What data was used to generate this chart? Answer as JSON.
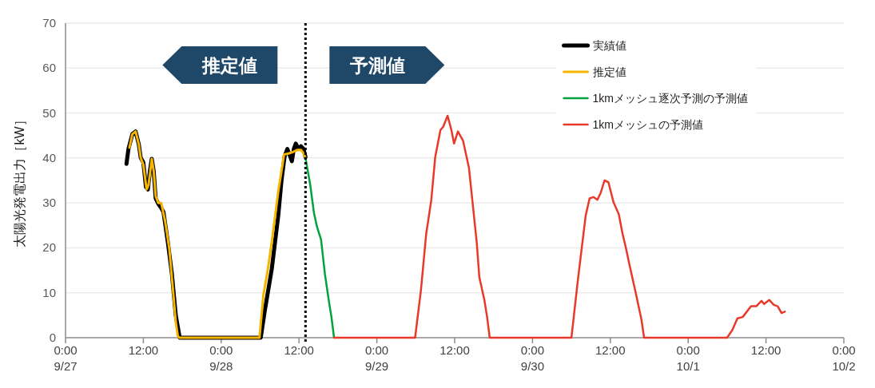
{
  "chart_data": {
    "type": "line",
    "ylabel": "太陽光発電出力［kW］",
    "annotations": [
      "推定値",
      "予測値"
    ],
    "xlim": [
      "--09-27T00:00",
      "--10-02T00:00"
    ],
    "xticks": [
      {
        "value": "--09-27T00:00",
        "label": "0:00\n9/27"
      },
      {
        "value": "--09-27T12:00",
        "label": "12:00"
      },
      {
        "value": "--09-28T00:00",
        "label": "0:00\n9/28"
      },
      {
        "value": "--09-28T12:00",
        "label": "12:00"
      },
      {
        "value": "--09-29T00:00",
        "label": "0:00\n9/29"
      },
      {
        "value": "--09-29T12:00",
        "label": "12:00"
      },
      {
        "value": "--09-30T00:00",
        "label": "0:00\n9/30"
      },
      {
        "value": "--09-30T12:00",
        "label": "12:00"
      },
      {
        "value": "--10-01T00:00",
        "label": "0:00\n10/1"
      },
      {
        "value": "--10-01T12:00",
        "label": "12:00"
      },
      {
        "value": "--10-02T00:00",
        "label": "0:00\n10/2"
      }
    ],
    "ylim": [
      0,
      70
    ],
    "yticks": [
      0,
      10,
      20,
      30,
      40,
      50,
      60,
      70
    ],
    "grid": "y",
    "legend": "top right",
    "ref_lines": [
      {
        "axis": "x",
        "value": "--09-28T13:00",
        "color": "#000000",
        "line_style": "dotted"
      }
    ],
    "series": [
      {
        "name": "実績値",
        "color": "#000000",
        "x": [
          "--09-27T09:24",
          "--09-27T09:42",
          "--09-27T10:18",
          "--09-27T10:48",
          "--09-27T11:18",
          "--09-27T11:36",
          "--09-27T12:00",
          "--09-27T12:24",
          "--09-27T12:42",
          "--09-27T13:00",
          "--09-27T13:18",
          "--09-27T13:36",
          "--09-27T13:54",
          "--09-27T14:18",
          "--09-27T14:42",
          "--09-27T15:06",
          "--09-27T15:48",
          "--09-27T16:24",
          "--09-27T17:00",
          "--09-27T17:36",
          "--09-28T06:06",
          "--09-28T06:42",
          "--09-28T07:48",
          "--09-28T08:48",
          "--09-28T09:18",
          "--09-28T09:48",
          "--09-28T10:12",
          "--09-28T10:36",
          "--09-28T10:54",
          "--09-28T11:12",
          "--09-28T11:30",
          "--09-28T11:54",
          "--09-28T12:18",
          "--09-28T12:42",
          "--09-28T13:00"
        ],
        "values": [
          38.7,
          42,
          45.3,
          45.9,
          43,
          40,
          39,
          33.5,
          33,
          37,
          39.8,
          37,
          31,
          29.8,
          29,
          28,
          21,
          14.2,
          5,
          0,
          0,
          5.8,
          15.3,
          27.2,
          35,
          40.5,
          42,
          40.5,
          39.3,
          42,
          43.2,
          42,
          42.6,
          42,
          40.2
        ]
      },
      {
        "name": "推定値",
        "color": "#f5b400",
        "x": [
          "--09-27T09:51",
          "--09-27T10:18",
          "--09-27T10:48",
          "--09-27T11:18",
          "--09-27T11:36",
          "--09-27T12:00",
          "--09-27T12:30",
          "--09-27T12:48",
          "--09-27T13:18",
          "--09-27T13:36",
          "--09-27T13:54",
          "--09-27T14:18",
          "--09-27T14:45",
          "--09-27T15:21",
          "--09-27T16:00",
          "--09-27T16:30",
          "--09-27T17:00",
          "--09-27T17:18",
          "--09-27T17:30",
          "--09-28T05:54",
          "--09-28T06:30",
          "--09-28T07:12",
          "--09-28T07:48",
          "--09-28T08:48",
          "--09-28T09:42",
          "--09-28T10:24",
          "--09-28T11:00",
          "--09-28T11:48",
          "--09-28T12:18",
          "--09-28T12:42",
          "--09-28T13:00"
        ],
        "values": [
          42.3,
          45.3,
          45.9,
          43,
          40,
          38.5,
          33,
          34,
          39.8,
          37,
          31.5,
          30,
          30,
          26,
          19.8,
          11.7,
          3.5,
          0.5,
          0,
          0,
          9.4,
          15.3,
          21.3,
          32.5,
          40.8,
          41,
          41.3,
          41.8,
          41.8,
          41,
          40
        ]
      },
      {
        "name": "1kmメッシュ逐次予測の予測値",
        "color": "#00a33e",
        "x": [
          "--09-28T13:00",
          "--09-28T13:42",
          "--09-28T14:18",
          "--09-28T14:45",
          "--09-28T15:24",
          "--09-28T16:00",
          "--09-28T16:36",
          "--09-28T17:00",
          "--09-28T17:24"
        ],
        "values": [
          40,
          34.3,
          27.8,
          24.8,
          21.8,
          14.1,
          8.2,
          4.6,
          0
        ]
      },
      {
        "name": "1kmメッシュの予測値",
        "color": "#e8392b",
        "x": [
          "--09-28T17:24",
          "--09-29T05:54",
          "--09-29T06:48",
          "--09-29T07:36",
          "--09-29T08:24",
          "--09-29T09:00",
          "--09-29T09:48",
          "--09-29T10:15",
          "--09-29T10:54",
          "--09-29T11:30",
          "--09-29T11:54",
          "--09-29T12:30",
          "--09-29T13:18",
          "--09-29T14:12",
          "--09-29T14:48",
          "--09-29T15:24",
          "--09-29T15:48",
          "--09-29T16:36",
          "--09-29T17:00",
          "--09-29T17:24",
          "--09-30T06:00",
          "--09-30T07:00",
          "--09-30T08:12",
          "--09-30T08:48",
          "--09-30T09:24",
          "--09-30T10:00",
          "--09-30T10:30",
          "--09-30T11:06",
          "--09-30T11:42",
          "--09-30T12:30",
          "--09-30T13:18",
          "--09-30T13:54",
          "--09-30T14:24",
          "--09-30T15:00",
          "--09-30T16:00",
          "--09-30T16:48",
          "--09-30T17:12",
          "--10-01T06:00",
          "--10-01T06:48",
          "--10-01T07:36",
          "--10-01T08:24",
          "--10-01T09:42",
          "--10-01T10:30",
          "--10-01T11:18",
          "--10-01T11:42",
          "--10-01T12:30",
          "--10-01T13:12",
          "--10-01T13:48",
          "--10-01T14:24",
          "--10-01T14:54"
        ],
        "values": [
          0,
          0,
          10.6,
          23,
          30.7,
          40.2,
          46.2,
          47,
          49.4,
          46.2,
          43.2,
          45.9,
          43.8,
          37.8,
          29.5,
          21.2,
          13.5,
          8.2,
          4.6,
          0,
          0,
          12.9,
          27.2,
          31,
          31.3,
          30.7,
          32.2,
          35,
          34.6,
          30.1,
          27.5,
          23,
          20,
          15.9,
          9.4,
          4,
          0,
          0,
          1.7,
          4.3,
          4.6,
          7,
          7,
          8.2,
          7.5,
          8.4,
          7.3,
          7,
          5.5,
          5.8
        ]
      }
    ]
  }
}
